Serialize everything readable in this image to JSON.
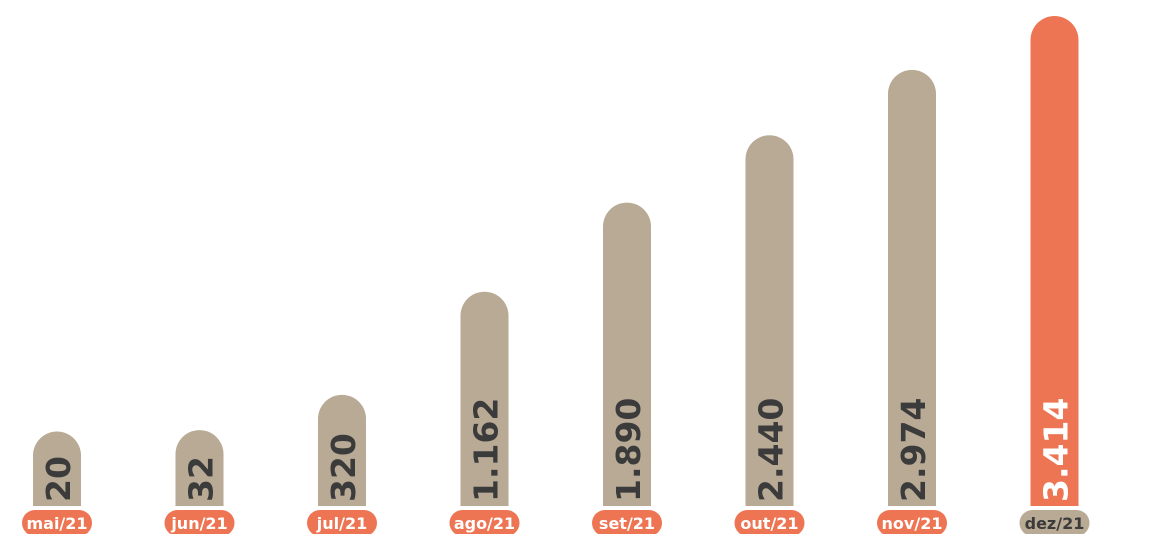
{
  "colors": {
    "bar": "#b8aa94",
    "highlight": "#ee7553",
    "value_text": "#3b3b3b",
    "value_text_highlight": "#ffffff",
    "label_text": "#ffffff",
    "label_text_highlight": "#3b3b3b"
  },
  "chart_data": {
    "type": "bar",
    "orientation": "vertical",
    "categories": [
      "mai/21",
      "jun/21",
      "jul/21",
      "ago/21",
      "set/21",
      "out/21",
      "nov/21",
      "dez/21"
    ],
    "values": [
      20,
      32,
      320,
      1162,
      1890,
      2440,
      2974,
      3414
    ],
    "value_labels": [
      "20",
      "32",
      "320",
      "1.162",
      "1.890",
      "2.440",
      "2.974",
      "3.414"
    ],
    "highlight_index": 7,
    "title": "",
    "xlabel": "",
    "ylabel": "",
    "grid": false,
    "legend": "none"
  }
}
